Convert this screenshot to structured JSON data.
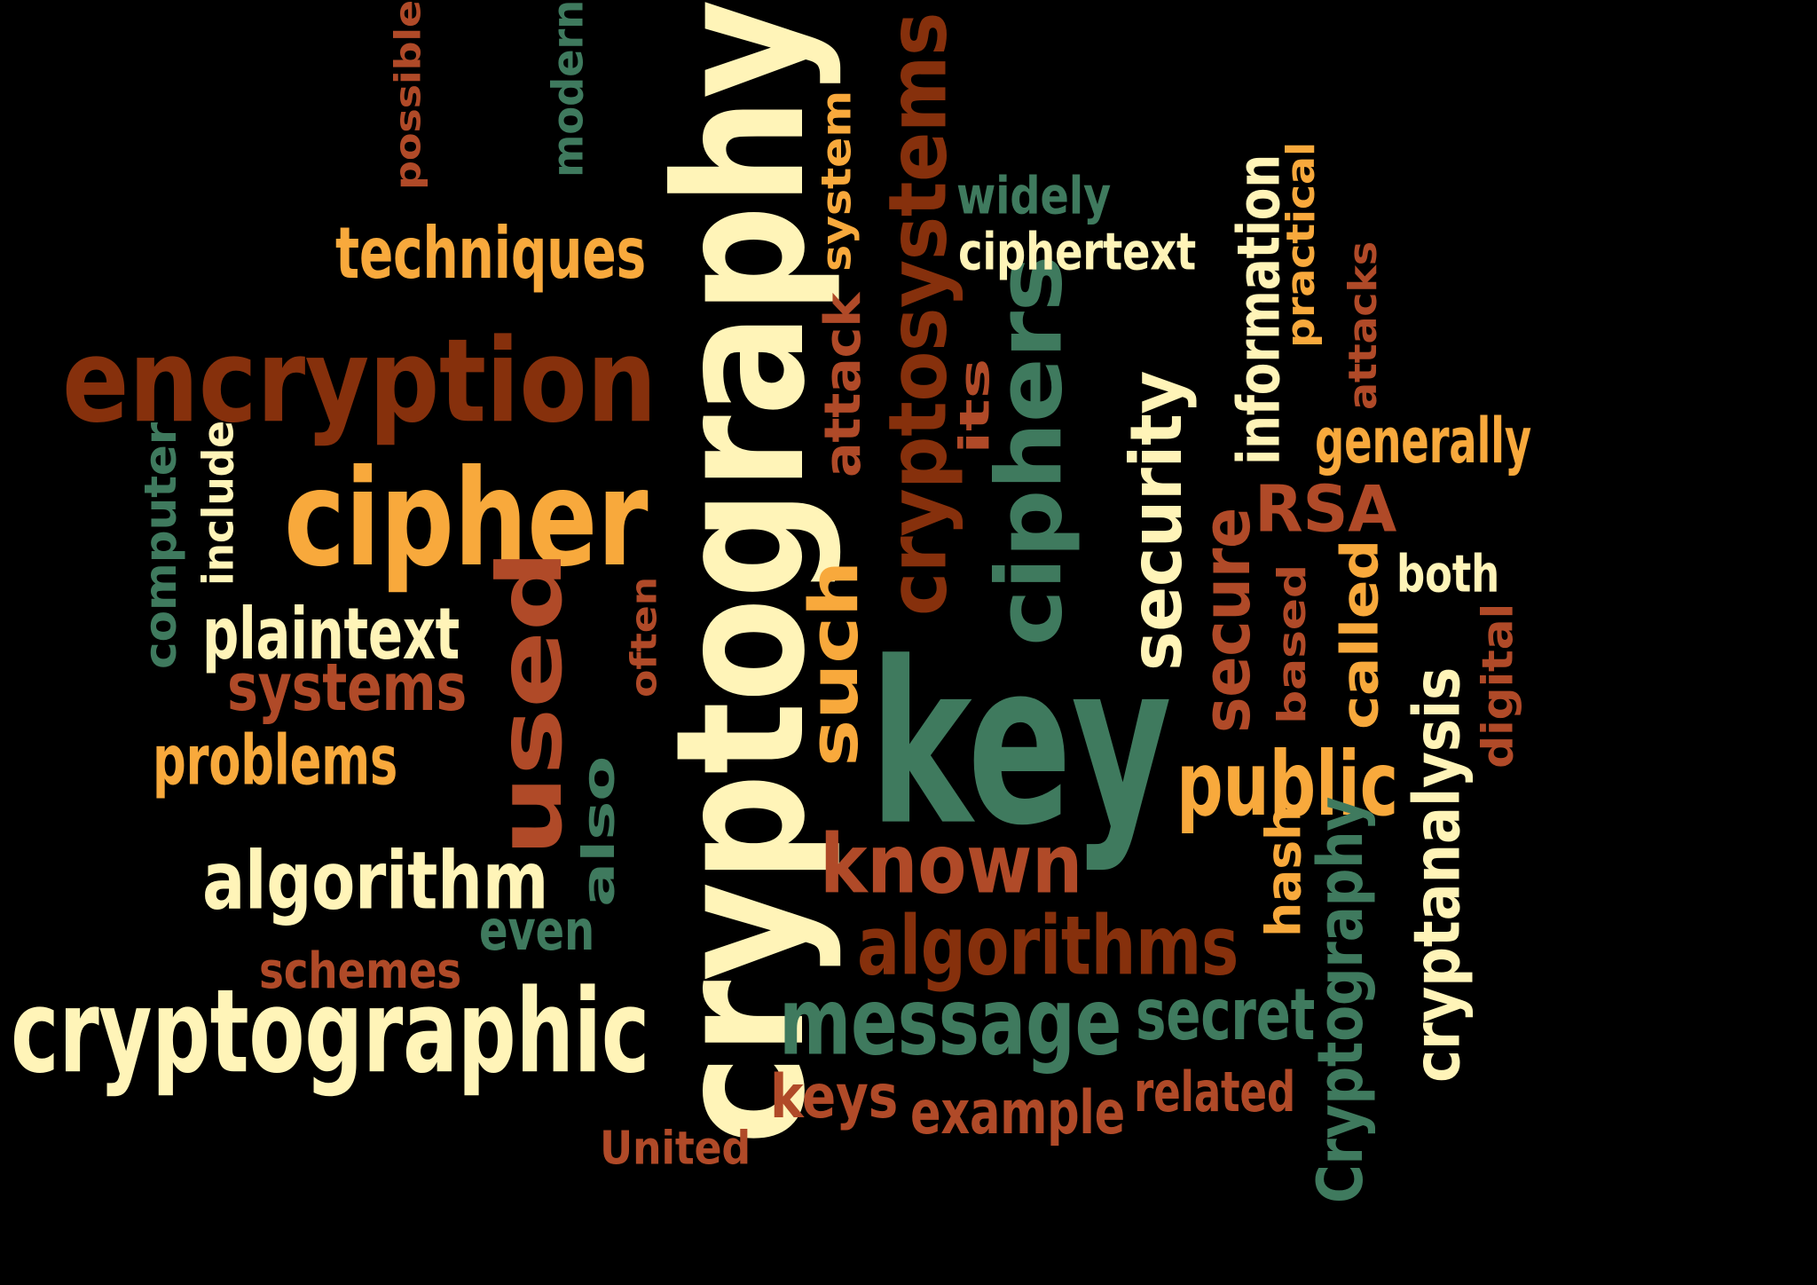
{
  "palette": {
    "cream": "#FFF4B8",
    "orange": "#F8A93C",
    "rust": "#B04A28",
    "darkrust": "#86300C",
    "green": "#3F7A5E"
  },
  "words": [
    {
      "id": "cryptography",
      "text": "cryptography",
      "color": "cream",
      "vertical": true
    },
    {
      "id": "key",
      "text": "key",
      "color": "green",
      "vertical": false
    },
    {
      "id": "encryption",
      "text": "encryption",
      "color": "darkrust",
      "vertical": false
    },
    {
      "id": "cryptographic",
      "text": "cryptographic",
      "color": "cream",
      "vertical": false
    },
    {
      "id": "cipher",
      "text": "cipher",
      "color": "orange",
      "vertical": false
    },
    {
      "id": "ciphers",
      "text": "ciphers",
      "color": "green",
      "vertical": true
    },
    {
      "id": "used",
      "text": "used",
      "color": "rust",
      "vertical": true
    },
    {
      "id": "cryptosystems",
      "text": "cryptosystems",
      "color": "darkrust",
      "vertical": true
    },
    {
      "id": "message",
      "text": "message",
      "color": "green",
      "vertical": false
    },
    {
      "id": "algorithm",
      "text": "algorithm",
      "color": "cream",
      "vertical": false
    },
    {
      "id": "algorithms",
      "text": "algorithms",
      "color": "darkrust",
      "vertical": false
    },
    {
      "id": "known",
      "text": "known",
      "color": "rust",
      "vertical": false
    },
    {
      "id": "public",
      "text": "public",
      "color": "orange",
      "vertical": false
    },
    {
      "id": "security",
      "text": "security",
      "color": "cream",
      "vertical": true
    },
    {
      "id": "secure",
      "text": "secure",
      "color": "rust",
      "vertical": true
    },
    {
      "id": "such",
      "text": "such",
      "color": "orange",
      "vertical": true
    },
    {
      "id": "secret",
      "text": "secret",
      "color": "green",
      "vertical": false
    },
    {
      "id": "cryptanalysis",
      "text": "cryptanalysis",
      "color": "cream",
      "vertical": true
    },
    {
      "id": "Cryptography",
      "text": "Cryptography",
      "color": "green",
      "vertical": true
    },
    {
      "id": "techniques",
      "text": "techniques",
      "color": "orange",
      "vertical": false
    },
    {
      "id": "plaintext",
      "text": "plaintext",
      "color": "cream",
      "vertical": false
    },
    {
      "id": "systems",
      "text": "systems",
      "color": "rust",
      "vertical": false
    },
    {
      "id": "problems",
      "text": "problems",
      "color": "orange",
      "vertical": false
    },
    {
      "id": "attack",
      "text": "attack",
      "color": "rust",
      "vertical": true
    },
    {
      "id": "information",
      "text": "information",
      "color": "cream",
      "vertical": true
    },
    {
      "id": "ciphertext",
      "text": "ciphertext",
      "color": "cream",
      "vertical": false
    },
    {
      "id": "also",
      "text": "also",
      "color": "green",
      "vertical": true
    },
    {
      "id": "RSA",
      "text": "RSA",
      "color": "rust",
      "vertical": false
    },
    {
      "id": "called",
      "text": "called",
      "color": "orange",
      "vertical": true
    },
    {
      "id": "generally",
      "text": "generally",
      "color": "orange",
      "vertical": false
    },
    {
      "id": "keys",
      "text": "keys",
      "color": "rust",
      "vertical": false
    },
    {
      "id": "example",
      "text": "example",
      "color": "rust",
      "vertical": false
    },
    {
      "id": "related",
      "text": "related",
      "color": "rust",
      "vertical": false
    },
    {
      "id": "even",
      "text": "even",
      "color": "green",
      "vertical": false
    },
    {
      "id": "schemes",
      "text": "schemes",
      "color": "rust",
      "vertical": false
    },
    {
      "id": "hash",
      "text": "hash",
      "color": "orange",
      "vertical": true
    },
    {
      "id": "its",
      "text": "its",
      "color": "rust",
      "vertical": true
    },
    {
      "id": "system",
      "text": "system",
      "color": "orange",
      "vertical": true
    },
    {
      "id": "practical",
      "text": "practical",
      "color": "orange",
      "vertical": true
    },
    {
      "id": "attacks",
      "text": "attacks",
      "color": "rust",
      "vertical": true
    },
    {
      "id": "digital",
      "text": "digital",
      "color": "rust",
      "vertical": true
    },
    {
      "id": "based",
      "text": "based",
      "color": "rust",
      "vertical": true
    },
    {
      "id": "both",
      "text": "both",
      "color": "cream",
      "vertical": false
    },
    {
      "id": "widely",
      "text": "widely",
      "color": "green",
      "vertical": false
    },
    {
      "id": "computer",
      "text": "computer",
      "color": "green",
      "vertical": true
    },
    {
      "id": "include",
      "text": "include",
      "color": "cream",
      "vertical": true
    },
    {
      "id": "often",
      "text": "often",
      "color": "rust",
      "vertical": true
    },
    {
      "id": "modern",
      "text": "modern",
      "color": "green",
      "vertical": true
    },
    {
      "id": "possible",
      "text": "possible",
      "color": "rust",
      "vertical": true
    },
    {
      "id": "United",
      "text": "United",
      "color": "rust",
      "vertical": false
    }
  ]
}
